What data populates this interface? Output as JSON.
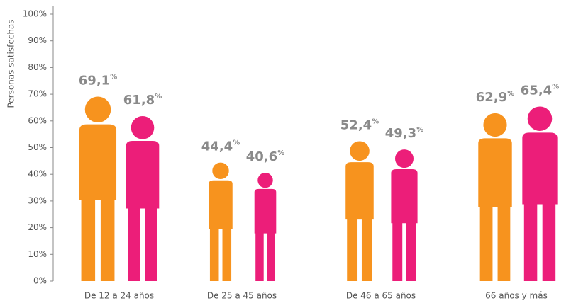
{
  "chart_data": {
    "type": "pictogram",
    "y_label": "Personas satisfechas",
    "categories": [
      "De 12 a 24 años",
      "De 25 a 45 años",
      "De 46 a 65 años",
      "66 años y más"
    ],
    "series": [
      {
        "color": "#f7931e",
        "values": [
          69.1,
          44.4,
          52.4,
          62.9
        ],
        "value_labels": [
          "69,1%",
          "44,4%",
          "52,4%",
          "62,9%"
        ]
      },
      {
        "color": "#ec1e79",
        "values": [
          61.8,
          40.6,
          49.3,
          65.4
        ],
        "value_labels": [
          "61,8%",
          "40,6%",
          "49,3%",
          "65,4%"
        ]
      }
    ],
    "ylim": [
      0,
      100
    ],
    "yticks": [
      {
        "value": 0,
        "label": "0%"
      },
      {
        "value": 10,
        "label": "10%"
      },
      {
        "value": 20,
        "label": "20%"
      },
      {
        "value": 30,
        "label": "30%"
      },
      {
        "value": 40,
        "label": "40%"
      },
      {
        "value": 50,
        "label": "50%"
      },
      {
        "value": 60,
        "label": "60%"
      },
      {
        "value": 70,
        "label": "70%"
      },
      {
        "value": 80,
        "label": "80%"
      },
      {
        "value": 90,
        "label": "90%"
      },
      {
        "value": 100,
        "label": "100%"
      }
    ]
  }
}
